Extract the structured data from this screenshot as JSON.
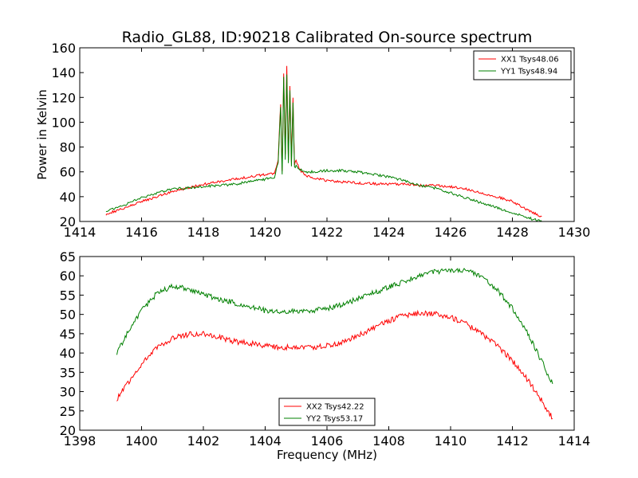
{
  "chart_data": [
    {
      "type": "line",
      "title": "Radio_GL88, ID:90218 Calibrated On-source spectrum",
      "xlabel": "",
      "ylabel": "Power in Kelvin",
      "xlim": [
        1414,
        1430
      ],
      "ylim": [
        20,
        160
      ],
      "xticks": [
        "1414",
        "1416",
        "1418",
        "1420",
        "1422",
        "1424",
        "1426",
        "1428",
        "1430"
      ],
      "yticks": [
        "20",
        "40",
        "60",
        "80",
        "100",
        "120",
        "140",
        "160"
      ],
      "legend_position": "top-right",
      "grid": false,
      "series": [
        {
          "name": "XX1 Tsys48.06",
          "color": "#ff0000",
          "x": [
            1414.85,
            1415.5,
            1416.0,
            1416.5,
            1417.0,
            1417.5,
            1418.0,
            1418.5,
            1419.0,
            1419.5,
            1420.0,
            1420.3,
            1420.42,
            1420.5,
            1420.55,
            1420.6,
            1420.65,
            1420.7,
            1420.75,
            1420.8,
            1420.85,
            1420.9,
            1420.95,
            1421.0,
            1421.1,
            1421.3,
            1421.6,
            1422.0,
            1422.5,
            1423.0,
            1423.5,
            1424.0,
            1424.5,
            1425.0,
            1425.5,
            1426.0,
            1426.5,
            1427.0,
            1427.5,
            1428.0,
            1428.5,
            1428.95
          ],
          "y": [
            26,
            31,
            36,
            40,
            44,
            47,
            50,
            52,
            54,
            56,
            58,
            59,
            70,
            115,
            60,
            140,
            75,
            145,
            70,
            130,
            68,
            120,
            65,
            70,
            62,
            57,
            55,
            53,
            52,
            51,
            50.5,
            50,
            50,
            49,
            49,
            48,
            46,
            43,
            40,
            36,
            29,
            24
          ]
        },
        {
          "name": "YY1 Tsys48.94",
          "color": "#008000",
          "x": [
            1414.85,
            1415.5,
            1416.0,
            1416.5,
            1417.0,
            1417.5,
            1418.0,
            1418.5,
            1419.0,
            1419.5,
            1420.0,
            1420.3,
            1420.42,
            1420.5,
            1420.55,
            1420.6,
            1420.65,
            1420.7,
            1420.75,
            1420.8,
            1420.85,
            1420.9,
            1420.95,
            1421.0,
            1421.1,
            1421.3,
            1421.6,
            1422.0,
            1422.5,
            1423.0,
            1423.5,
            1424.0,
            1424.5,
            1425.0,
            1425.5,
            1426.0,
            1426.5,
            1427.0,
            1427.5,
            1428.0,
            1428.5,
            1428.95
          ],
          "y": [
            28,
            34,
            39,
            43,
            46,
            47,
            48,
            49,
            50,
            52,
            54,
            56,
            68,
            112,
            58,
            137,
            70,
            138,
            66,
            126,
            64,
            116,
            63,
            65,
            62,
            60,
            60,
            61,
            61,
            60,
            58,
            56,
            53,
            49,
            47,
            43,
            39,
            35,
            31,
            27,
            23,
            20
          ]
        }
      ]
    },
    {
      "type": "line",
      "title": "",
      "xlabel": "Frequency (MHz)",
      "ylabel": "",
      "xlim": [
        1398,
        1414
      ],
      "ylim": [
        20,
        65
      ],
      "xticks": [
        "1398",
        "1400",
        "1402",
        "1404",
        "1406",
        "1408",
        "1410",
        "1412",
        "1414"
      ],
      "yticks": [
        "20",
        "25",
        "30",
        "35",
        "40",
        "45",
        "50",
        "55",
        "60",
        "65"
      ],
      "legend_position": "bottom-center",
      "grid": false,
      "series": [
        {
          "name": "XX2 Tsys42.22",
          "color": "#ff0000",
          "x": [
            1399.2,
            1399.5,
            1400.0,
            1400.5,
            1401.0,
            1401.5,
            1402.0,
            1402.5,
            1403.0,
            1403.5,
            1404.0,
            1404.5,
            1405.0,
            1405.5,
            1406.0,
            1406.5,
            1407.0,
            1407.5,
            1408.0,
            1408.5,
            1409.0,
            1409.5,
            1410.0,
            1410.5,
            1411.0,
            1411.5,
            1412.0,
            1412.5,
            1413.0,
            1413.3
          ],
          "y": [
            28,
            31.5,
            37,
            41.5,
            43.8,
            44.8,
            45,
            44,
            43,
            42.5,
            41.8,
            41.5,
            41.5,
            41.5,
            42,
            42.8,
            44.5,
            46.5,
            48.3,
            49.8,
            50.3,
            50.2,
            49.3,
            47.5,
            45,
            42,
            38,
            33,
            27,
            23
          ]
        },
        {
          "name": "YY2 Tsys53.17",
          "color": "#008000",
          "x": [
            1399.2,
            1399.5,
            1400.0,
            1400.5,
            1401.0,
            1401.5,
            1402.0,
            1402.5,
            1403.0,
            1403.5,
            1404.0,
            1404.5,
            1405.0,
            1405.5,
            1406.0,
            1406.5,
            1407.0,
            1407.5,
            1408.0,
            1408.5,
            1409.0,
            1409.5,
            1410.0,
            1410.5,
            1411.0,
            1411.5,
            1412.0,
            1412.5,
            1413.0,
            1413.3
          ],
          "y": [
            40,
            44.5,
            51,
            55.5,
            57.2,
            56.8,
            55.3,
            54,
            53,
            52,
            51,
            50.8,
            50.7,
            51,
            51.5,
            52.5,
            54,
            55.5,
            57,
            58.5,
            60,
            61,
            61.5,
            61.5,
            60,
            56.5,
            51.5,
            45,
            37,
            32
          ]
        }
      ]
    }
  ]
}
